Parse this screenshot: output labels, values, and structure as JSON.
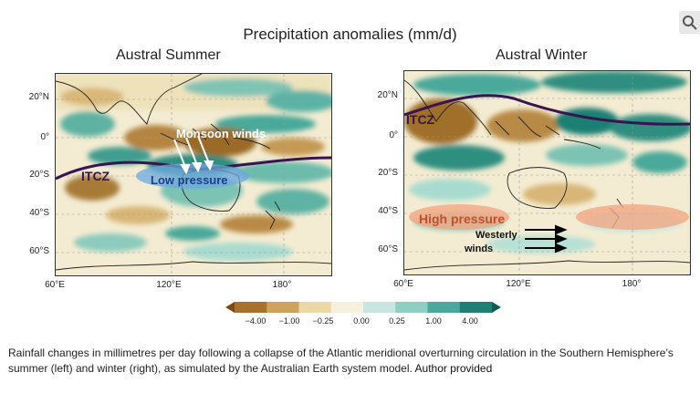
{
  "title": "Precipitation anomalies (mm/d)",
  "panels": [
    {
      "id": "summer",
      "title": "Austral Summer",
      "lat_ticks": [
        "20°N",
        "0°",
        "20°S",
        "40°S",
        "60°S"
      ],
      "lon_ticks": [
        "60°E",
        "120°E",
        "180°"
      ],
      "annotations": {
        "monsoon": "Monsoon winds",
        "itcz": "ITCZ",
        "pressure": "Low pressure"
      }
    },
    {
      "id": "winter",
      "title": "Austral Winter",
      "lat_ticks": [
        "20°N",
        "0°",
        "20°S",
        "40°S",
        "60°S"
      ],
      "lon_ticks": [
        "60°E",
        "120°E",
        "180°"
      ],
      "annotations": {
        "itcz": "ITCZ",
        "pressure": "High pressure",
        "westerly_line1": "Westerly",
        "westerly_line2": "winds"
      }
    }
  ],
  "colorbar": {
    "labels": [
      "−4.00",
      "−1.00",
      "−0.25",
      "0.00",
      "0.25",
      "1.00",
      "4.00"
    ],
    "colors": [
      "#7a4a14",
      "#a9722c",
      "#cfa35d",
      "#ecd7a6",
      "#f6f0dc",
      "#c8e6df",
      "#8fcfc3",
      "#4aa99a",
      "#1f7f73",
      "#0f5a52"
    ]
  },
  "caption": {
    "text": "Rainfall changes in millimetres per day following a collapse of the Atlantic meridional overturning circulation in the Southern Hemisphere’s summer (left) and winter (right), as simulated by the Australian Earth system model.",
    "credit": "Author provided"
  },
  "icons": {
    "search": "search-icon"
  }
}
